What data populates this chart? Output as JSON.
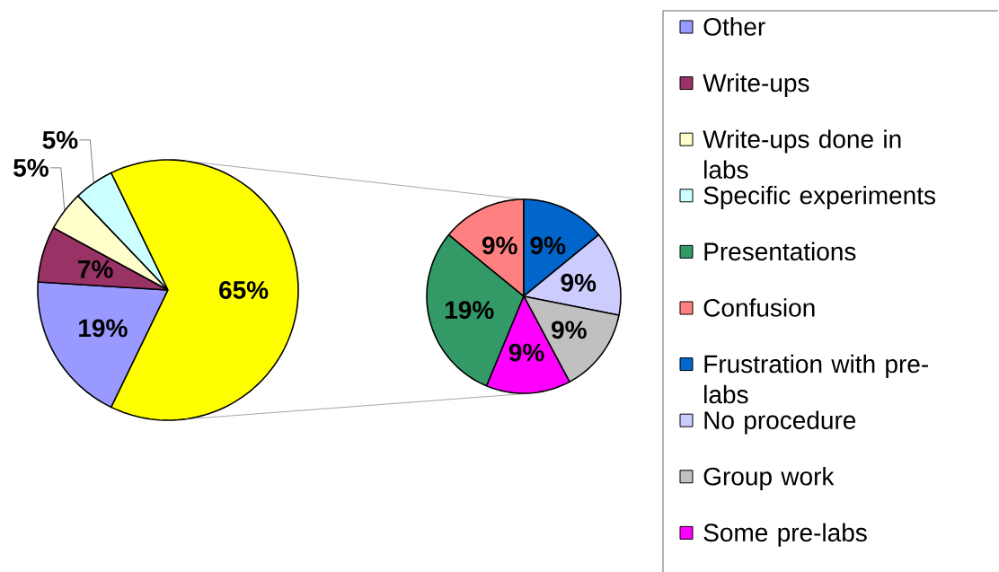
{
  "chart_data": [
    {
      "type": "pie",
      "categories": [
        "Other",
        "Write-ups",
        "Write-ups done in labs",
        "Specific experiments",
        null
      ],
      "values": [
        19,
        7,
        5,
        5,
        65
      ],
      "colors": [
        "#9999ff",
        "#993366",
        "#ffffcc",
        "#ccffff",
        "#ffff00"
      ],
      "value_labels": [
        "19%",
        "7%",
        "5%",
        "5%",
        "65%"
      ],
      "legend": "right"
    },
    {
      "type": "pie",
      "categories": [
        "Presentations",
        "Confusion",
        "Frustration with pre-labs",
        "No procedure",
        "Group work",
        "Some pre-labs"
      ],
      "values": [
        19,
        9,
        9,
        9,
        9,
        9
      ],
      "colors": [
        "#339966",
        "#ff8080",
        "#0066cc",
        "#ccccff",
        "#c0c0c0",
        "#ff00ff"
      ],
      "value_labels": [
        "19%",
        "9%",
        "9%",
        "9%",
        "9%",
        "9%"
      ],
      "legend": "right"
    }
  ]
}
